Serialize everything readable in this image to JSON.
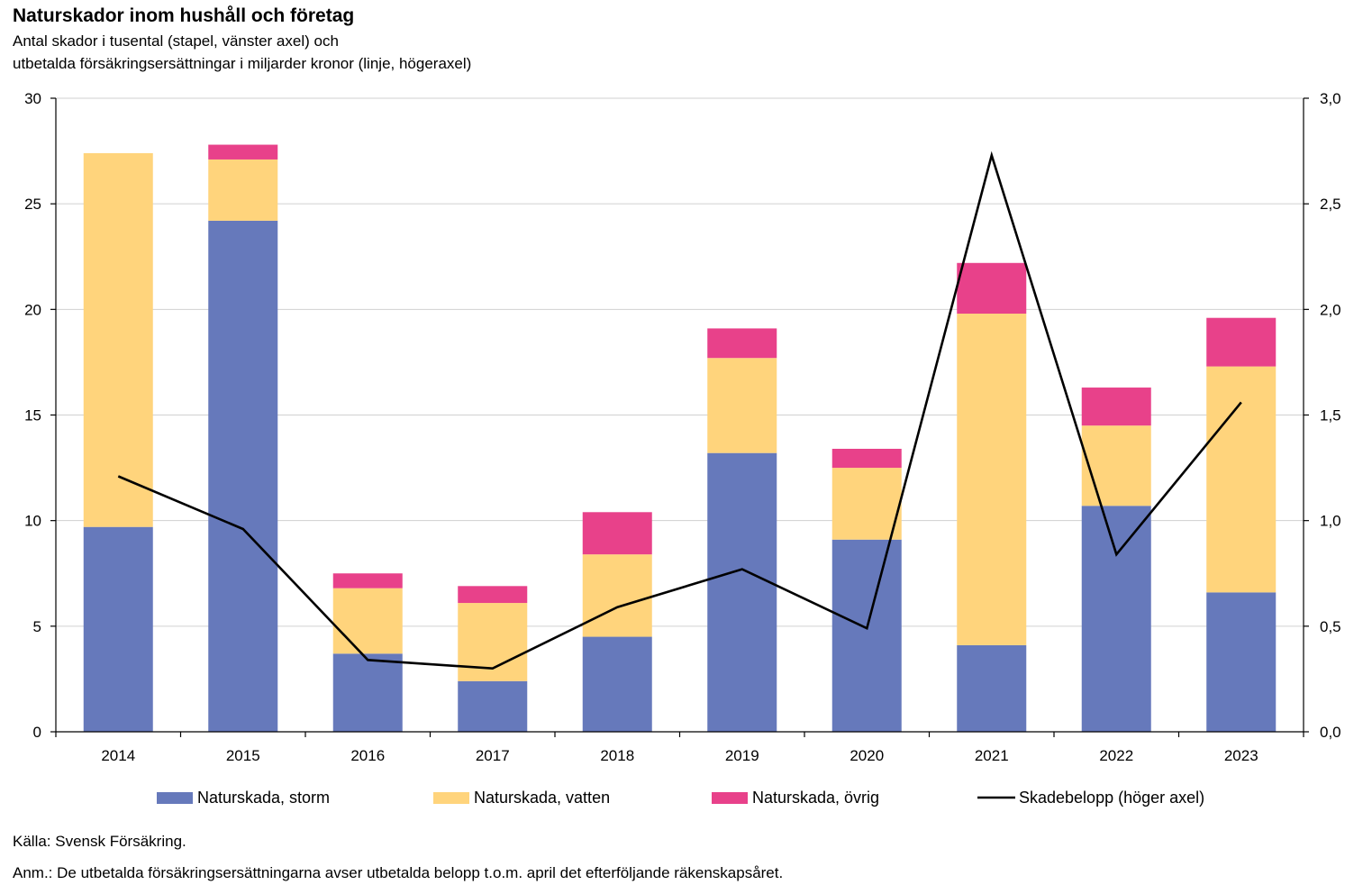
{
  "title": "Naturskador inom hushåll och företag",
  "subtitle_line1": "Antal skador i tusental (stapel, vänster axel) och",
  "subtitle_line2": "utbetalda försäkringsersättningar i miljarder kronor (linje, högeraxel)",
  "source": "Källa: Svensk Försäkring.",
  "note": "Anm.: De utbetalda försäkringsersättningarna avser utbetalda belopp t.o.m. april det efterföljande räkenskapsåret.",
  "colors": {
    "storm": "#6679BB",
    "vatten": "#FFD47C",
    "ovrig": "#E8418A",
    "line": "#000000",
    "grid": "#D0D0D0"
  },
  "chart_data": {
    "type": "bar",
    "stacked": true,
    "categories": [
      "2014",
      "2015",
      "2016",
      "2017",
      "2018",
      "2019",
      "2020",
      "2021",
      "2022",
      "2023"
    ],
    "series": [
      {
        "name": "Naturskada, storm",
        "key": "storm",
        "values": [
          9.7,
          24.2,
          3.7,
          2.4,
          4.5,
          13.2,
          9.1,
          4.1,
          10.7,
          6.6
        ]
      },
      {
        "name": "Naturskada, vatten",
        "key": "vatten",
        "values": [
          17.7,
          2.9,
          3.1,
          3.7,
          3.9,
          4.5,
          3.4,
          15.7,
          3.8,
          10.7
        ]
      },
      {
        "name": "Naturskada, övrig",
        "key": "ovrig",
        "values": [
          0.0,
          0.7,
          0.7,
          0.8,
          2.0,
          1.4,
          0.9,
          2.4,
          1.8,
          2.3
        ]
      }
    ],
    "line_series": {
      "name": "Skadebelopp (höger axel)",
      "axis": "right",
      "values": [
        1.21,
        0.96,
        0.34,
        0.3,
        0.59,
        0.77,
        0.49,
        2.73,
        0.84,
        1.56
      ]
    },
    "ylim_left": [
      0,
      30
    ],
    "ylim_right": [
      0,
      3.0
    ],
    "yticks_left": [
      "0",
      "5",
      "10",
      "15",
      "20",
      "25",
      "30"
    ],
    "yticks_right": [
      "0,0",
      "0,5",
      "1,0",
      "1,5",
      "2,0",
      "2,5",
      "3,0"
    ],
    "grid": true,
    "legend_position": "bottom"
  }
}
